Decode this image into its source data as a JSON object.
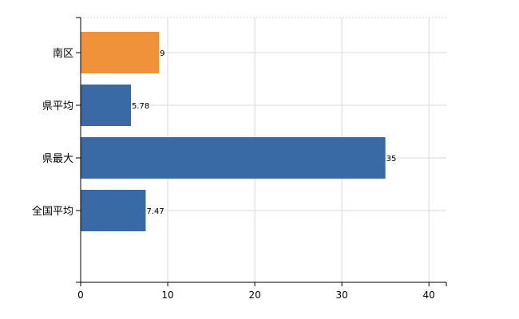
{
  "chart_data": {
    "type": "bar",
    "orientation": "horizontal",
    "categories": [
      "南区",
      "県平均",
      "県最大",
      "全国平均"
    ],
    "values": [
      9,
      5.78,
      35,
      7.47
    ],
    "value_labels": [
      "9",
      "5.78",
      "35",
      "7.47"
    ],
    "bar_colors": [
      "#f0923a",
      "#3a6aa6",
      "#3a6aa6",
      "#3a6aa6"
    ],
    "xlim": [
      0,
      42
    ],
    "xticks": [
      0,
      10,
      20,
      30,
      40
    ],
    "title": "",
    "xlabel": "",
    "ylabel": "",
    "grid": true,
    "legend": "none"
  }
}
